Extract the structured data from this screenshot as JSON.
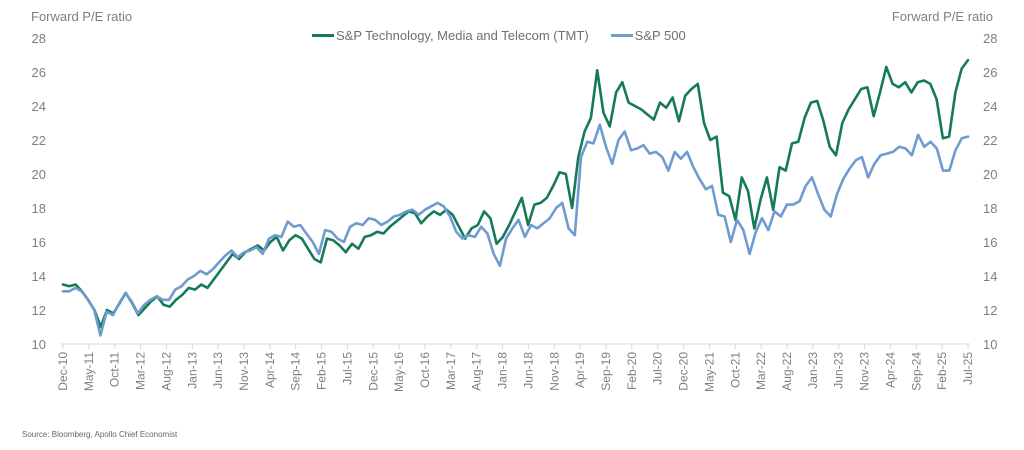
{
  "chart_data": {
    "type": "line",
    "title": "",
    "ylabel_left": "Forward P/E ratio",
    "ylabel_right": "Forward P/E ratio",
    "xlabel": "",
    "ylim": [
      10,
      28
    ],
    "yticks": [
      10,
      12,
      14,
      16,
      18,
      20,
      22,
      24,
      26,
      28
    ],
    "grid": false,
    "legend_position": "top-center",
    "x_start": "Dec-10",
    "x_end": "Jul-25",
    "x_step_months": 2,
    "xtick_labels": [
      "Dec-10",
      "May-11",
      "Oct-11",
      "Mar-12",
      "Aug-12",
      "Jan-13",
      "Jun-13",
      "Nov-13",
      "Apr-14",
      "Sep-14",
      "Feb-15",
      "Jul-15",
      "Dec-15",
      "May-16",
      "Oct-16",
      "Mar-17",
      "Aug-17",
      "Jan-18",
      "Jun-18",
      "Nov-18",
      "Apr-19",
      "Sep-19",
      "Feb-20",
      "Jul-20",
      "Dec-20",
      "May-21",
      "Oct-21",
      "Mar-22",
      "Aug-22",
      "Jan-23",
      "Jun-23",
      "Nov-23",
      "Apr-24",
      "Sep-24",
      "Feb-25",
      "Jul-25"
    ],
    "series": [
      {
        "name": "S&P Technology, Media and Telecom (TMT)",
        "color": "#157a5a",
        "values": [
          13.5,
          13.4,
          13.5,
          13.1,
          12.6,
          12.0,
          11.0,
          12.0,
          11.8,
          12.4,
          13.0,
          12.4,
          11.7,
          12.1,
          12.5,
          12.8,
          12.3,
          12.2,
          12.6,
          12.9,
          13.3,
          13.2,
          13.5,
          13.3,
          13.8,
          14.3,
          14.8,
          15.3,
          15.0,
          15.4,
          15.6,
          15.8,
          15.5,
          16.0,
          16.3,
          15.5,
          16.1,
          16.4,
          16.2,
          15.6,
          15.0,
          14.8,
          16.2,
          16.1,
          15.8,
          15.4,
          15.9,
          15.6,
          16.3,
          16.4,
          16.6,
          16.5,
          16.9,
          17.2,
          17.5,
          17.8,
          17.7,
          17.1,
          17.5,
          17.8,
          17.6,
          17.9,
          17.6,
          16.9,
          16.2,
          16.8,
          17.0,
          17.8,
          17.4,
          15.9,
          16.3,
          17.0,
          17.8,
          18.6,
          17.0,
          18.2,
          18.3,
          18.6,
          19.3,
          20.1,
          20.0,
          18.0,
          21.0,
          22.5,
          23.3,
          26.1,
          23.6,
          22.8,
          24.8,
          25.4,
          24.2,
          24.0,
          23.8,
          23.5,
          23.2,
          24.2,
          23.9,
          24.5,
          23.1,
          24.6,
          25.0,
          25.3,
          23.0,
          22.0,
          22.2,
          18.9,
          18.7,
          17.3,
          19.8,
          19.0,
          16.8,
          18.5,
          19.8,
          17.9,
          20.4,
          20.2,
          21.8,
          21.9,
          23.3,
          24.2,
          24.3,
          23.1,
          21.6,
          21.1,
          23.0,
          23.8,
          24.4,
          25.0,
          25.1,
          23.4,
          24.8,
          26.3,
          25.3,
          25.1,
          25.4,
          24.8,
          25.4,
          25.5,
          25.3,
          24.4,
          22.1,
          22.2,
          24.8,
          26.2,
          26.7
        ]
      },
      {
        "name": "S&P 500",
        "color": "#6f9bd1",
        "values": [
          13.1,
          13.1,
          13.3,
          13.1,
          12.6,
          12.0,
          10.5,
          11.9,
          11.7,
          12.4,
          13.0,
          12.5,
          11.8,
          12.3,
          12.6,
          12.8,
          12.6,
          12.6,
          13.2,
          13.4,
          13.8,
          14.0,
          14.3,
          14.1,
          14.4,
          14.8,
          15.2,
          15.5,
          15.1,
          15.4,
          15.5,
          15.7,
          15.3,
          16.2,
          16.4,
          16.3,
          17.2,
          16.9,
          17.0,
          16.5,
          16.0,
          15.3,
          16.7,
          16.6,
          16.2,
          16.0,
          16.9,
          17.1,
          17.0,
          17.4,
          17.3,
          17.0,
          17.2,
          17.5,
          17.6,
          17.8,
          17.9,
          17.6,
          17.9,
          18.1,
          18.3,
          18.1,
          17.5,
          16.6,
          16.2,
          16.4,
          16.3,
          16.9,
          16.5,
          15.3,
          14.6,
          16.2,
          16.8,
          17.3,
          16.3,
          17.0,
          16.8,
          17.1,
          17.4,
          18.0,
          18.3,
          16.8,
          16.4,
          21.0,
          21.9,
          21.8,
          22.9,
          21.6,
          20.6,
          22.0,
          22.5,
          21.4,
          21.5,
          21.7,
          21.2,
          21.3,
          21.0,
          20.2,
          21.3,
          20.9,
          21.3,
          20.4,
          19.7,
          19.1,
          19.3,
          17.6,
          17.5,
          16.0,
          17.3,
          16.7,
          15.3,
          16.6,
          17.4,
          16.7,
          17.8,
          17.5,
          18.2,
          18.2,
          18.4,
          19.3,
          19.8,
          18.8,
          17.9,
          17.5,
          18.8,
          19.7,
          20.3,
          20.8,
          21.0,
          19.8,
          20.6,
          21.1,
          21.2,
          21.3,
          21.6,
          21.5,
          21.1,
          22.3,
          21.6,
          21.9,
          21.5,
          20.2,
          20.2,
          21.4,
          22.1,
          22.2
        ]
      }
    ]
  },
  "legend": {
    "items": [
      {
        "label": "S&P Technology, Media and Telecom (TMT)",
        "color": "#157a5a"
      },
      {
        "label": "S&P 500",
        "color": "#6f9bd1"
      }
    ]
  },
  "source": "Source: Bloomberg, Apollo Chief Economist"
}
